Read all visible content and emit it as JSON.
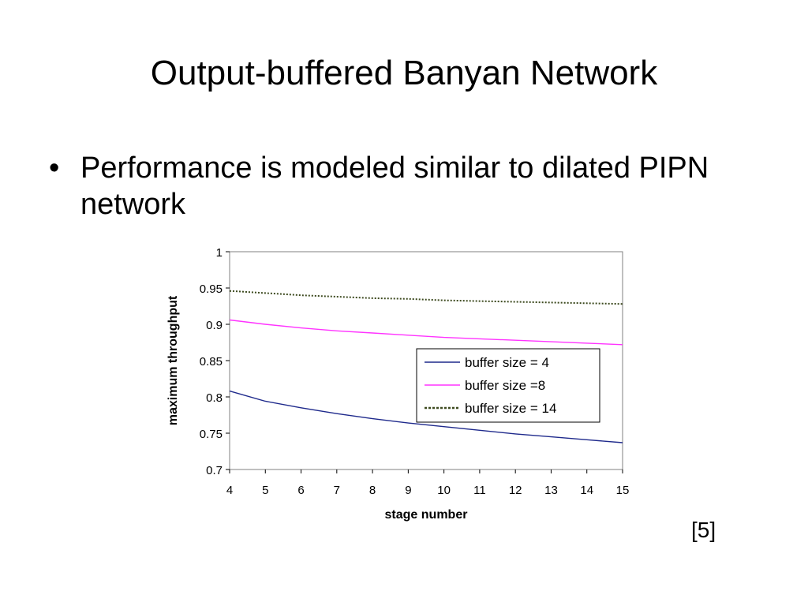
{
  "slide": {
    "title": "Output-buffered Banyan Network",
    "bullets": [
      "Performance is modeled similar to dilated PIPN network"
    ],
    "bullet_symbol": "•",
    "citation": "[5]"
  },
  "chart_data": {
    "type": "line",
    "title": "",
    "xlabel": "stage number",
    "ylabel": "maximum throughput",
    "x": [
      4,
      5,
      6,
      7,
      8,
      9,
      10,
      11,
      12,
      13,
      14,
      15
    ],
    "xlim": [
      4,
      15
    ],
    "ylim": [
      0.7,
      1
    ],
    "x_ticks": [
      "4",
      "5",
      "6",
      "7",
      "8",
      "9",
      "10",
      "11",
      "12",
      "13",
      "14",
      "15"
    ],
    "y_ticks": [
      "0.7",
      "0.75",
      "0.8",
      "0.85",
      "0.9",
      "0.95",
      "1"
    ],
    "y_tick_values": [
      0.7,
      0.75,
      0.8,
      0.85,
      0.9,
      0.95,
      1
    ],
    "grid": false,
    "legend_position": "right-center",
    "series": [
      {
        "name": "buffer size = 4",
        "color": "#1f2a8c",
        "style": "solid",
        "values": [
          0.808,
          0.794,
          0.785,
          0.777,
          0.77,
          0.764,
          0.759,
          0.754,
          0.749,
          0.745,
          0.741,
          0.737
        ]
      },
      {
        "name": "buffer size =8",
        "color": "#ff33ff",
        "style": "solid",
        "values": [
          0.906,
          0.9,
          0.895,
          0.891,
          0.888,
          0.885,
          0.882,
          0.88,
          0.878,
          0.876,
          0.874,
          0.872
        ]
      },
      {
        "name": "buffer size = 14",
        "color": "#3d4a1f",
        "style": "dotted",
        "values": [
          0.946,
          0.943,
          0.94,
          0.938,
          0.936,
          0.935,
          0.933,
          0.932,
          0.931,
          0.93,
          0.929,
          0.928
        ]
      }
    ]
  }
}
